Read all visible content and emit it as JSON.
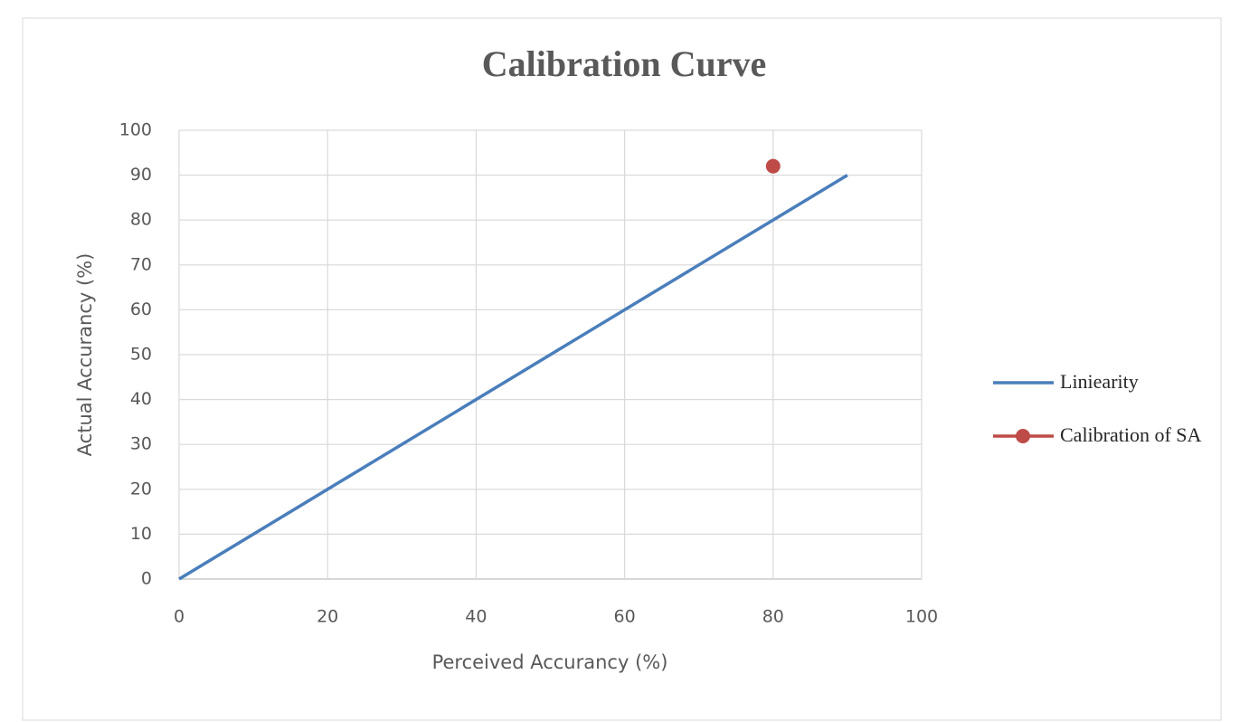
{
  "chart_data": {
    "type": "line",
    "title": "Calibration Curve",
    "x_label": "Perceived Accurancy (%)",
    "y_label": "Actual Accurancy (%)",
    "series": [
      {
        "name": "Liniearity",
        "color": "#4a7ebb",
        "x": [
          0,
          90
        ],
        "values": [
          0,
          90
        ],
        "line": true,
        "marker": false
      },
      {
        "name": "Calibration of SA",
        "color": "#be4b48",
        "x": [
          80
        ],
        "values": [
          92
        ],
        "line": true,
        "marker": true
      }
    ],
    "xlim": [
      0,
      100
    ],
    "xticks": [
      0,
      20,
      40,
      60,
      80,
      100
    ],
    "ylim": [
      0,
      100
    ],
    "yticks": [
      0,
      10,
      20,
      30,
      40,
      50,
      60,
      70,
      80,
      90,
      100
    ],
    "grid": true,
    "legend": "right"
  }
}
